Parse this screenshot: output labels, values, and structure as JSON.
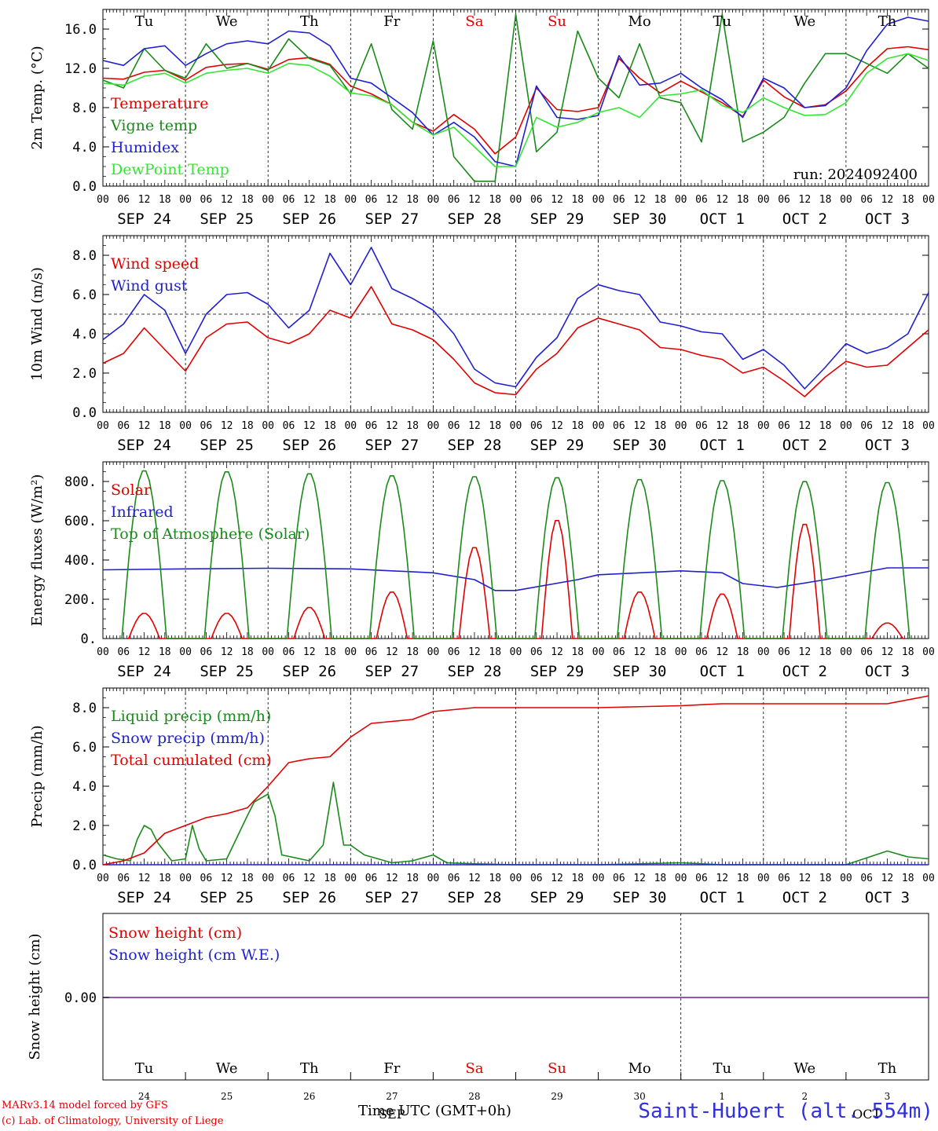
{
  "footer": {
    "credit_line1": "MARv3.14 model forced by GFS",
    "credit_line2": "(c) Lab. of Climatology, University of Liege",
    "station": "Saint-Hubert (alt. 554m)",
    "time_axis_title": "Time UTC (GMT+0h)"
  },
  "colors": {
    "red": "#e00000",
    "green": "#1a8a1a",
    "blue": "#2020d0",
    "light_green": "#33e633",
    "purple": "#8040a0",
    "grid": "#000000"
  },
  "day_names": [
    "Tu",
    "We",
    "Th",
    "Fr",
    "Sa",
    "Su",
    "Mo",
    "Tu",
    "We",
    "Th"
  ],
  "weekend_days": [
    4,
    5
  ],
  "date_labels": [
    "SEP 24",
    "SEP 25",
    "SEP 26",
    "SEP 27",
    "SEP 28",
    "SEP 29",
    "SEP 30",
    "OCT  1",
    "OCT  2",
    "OCT  3"
  ],
  "hour_labels": [
    "00",
    "06",
    "12",
    "18"
  ],
  "bottom_day_numbers": [
    "24",
    "25",
    "26",
    "27",
    "28",
    "29",
    "30",
    "1",
    "2",
    "3"
  ],
  "bottom_month_labels": [
    "SEP",
    "OCT"
  ],
  "chart_data": [
    {
      "type": "line",
      "ylabel": "2m Temp. (°C)",
      "annotation": "run: 2024092400",
      "ylim": [
        0,
        18
      ],
      "yticks": [
        "0.0",
        "4.0",
        "8.0",
        "12.0",
        "16.0"
      ],
      "x_unit": "hours since 2024-09-24 00 UTC",
      "series": [
        {
          "name": "Temperature",
          "color": "red",
          "x": [
            0,
            6,
            12,
            18,
            24,
            30,
            36,
            42,
            48,
            54,
            60,
            66,
            72,
            78,
            84,
            90,
            96,
            102,
            108,
            114,
            120,
            126,
            132,
            138,
            144,
            150,
            156,
            162,
            168,
            174,
            180,
            186,
            192,
            198,
            204,
            210,
            216,
            222,
            228,
            234,
            240
          ],
          "values": [
            11.0,
            10.9,
            11.6,
            11.8,
            10.8,
            12.1,
            12.4,
            12.5,
            11.9,
            12.9,
            13.1,
            12.4,
            10.2,
            9.4,
            8.3,
            6.5,
            5.6,
            7.3,
            5.8,
            3.3,
            5.0,
            10.0,
            7.8,
            7.6,
            8.0,
            13.0,
            11.0,
            9.5,
            10.7,
            9.6,
            8.5,
            7.1,
            10.8,
            9.1,
            8.0,
            8.3,
            9.7,
            12.1,
            14.0,
            14.2,
            13.9
          ]
        },
        {
          "name": "Vigne temp",
          "color": "green",
          "x": [
            0,
            6,
            12,
            18,
            24,
            30,
            36,
            42,
            48,
            54,
            60,
            66,
            72,
            78,
            84,
            90,
            96,
            102,
            108,
            114,
            120,
            126,
            132,
            138,
            144,
            150,
            156,
            162,
            168,
            174,
            180,
            186,
            192,
            198,
            204,
            210,
            216,
            222,
            228,
            234,
            240
          ],
          "values": [
            10.8,
            10.0,
            14.0,
            11.8,
            11.0,
            14.5,
            12.0,
            12.5,
            11.8,
            15.0,
            13.0,
            12.3,
            9.4,
            14.5,
            7.8,
            5.8,
            14.8,
            3.0,
            0.5,
            0.5,
            17.5,
            3.5,
            5.5,
            15.8,
            11.0,
            9.0,
            14.5,
            9.0,
            8.5,
            4.5,
            17.5,
            4.5,
            5.5,
            7.0,
            10.5,
            13.5,
            13.5,
            12.5,
            11.5,
            13.5,
            12.0
          ]
        },
        {
          "name": "Humidex",
          "color": "blue",
          "x": [
            0,
            6,
            12,
            18,
            24,
            30,
            36,
            42,
            48,
            54,
            60,
            66,
            72,
            78,
            84,
            90,
            96,
            102,
            108,
            114,
            120,
            126,
            132,
            138,
            144,
            150,
            156,
            162,
            168,
            174,
            180,
            186,
            192,
            198,
            204,
            210,
            216,
            222,
            228,
            234,
            240
          ],
          "values": [
            12.8,
            12.3,
            14.0,
            14.3,
            12.3,
            13.5,
            14.5,
            14.8,
            14.5,
            15.8,
            15.6,
            14.3,
            11.0,
            10.5,
            9.0,
            7.5,
            5.2,
            6.5,
            5.0,
            2.5,
            2.0,
            10.2,
            7.0,
            6.8,
            7.2,
            13.3,
            10.3,
            10.5,
            11.5,
            10.0,
            8.8,
            7.0,
            11.0,
            10.0,
            8.0,
            8.2,
            10.0,
            13.8,
            16.5,
            17.2,
            16.8
          ]
        },
        {
          "name": "DewPoint Temp",
          "color": "light_green",
          "x": [
            0,
            6,
            12,
            18,
            24,
            30,
            36,
            42,
            48,
            54,
            60,
            66,
            72,
            78,
            84,
            90,
            96,
            102,
            108,
            114,
            120,
            126,
            132,
            138,
            144,
            150,
            156,
            162,
            168,
            174,
            180,
            186,
            192,
            198,
            204,
            210,
            216,
            222,
            228,
            234,
            240
          ],
          "values": [
            10.5,
            10.3,
            11.2,
            11.5,
            10.5,
            11.5,
            11.8,
            12.0,
            11.5,
            12.5,
            12.3,
            11.2,
            9.5,
            9.2,
            8.3,
            6.5,
            5.2,
            6.0,
            4.0,
            2.0,
            2.0,
            7.0,
            6.0,
            6.5,
            7.5,
            8.0,
            7.0,
            9.2,
            9.4,
            9.8,
            8.2,
            7.5,
            9.0,
            8.0,
            7.2,
            7.3,
            8.5,
            11.5,
            13.0,
            13.5,
            12.8
          ]
        }
      ]
    },
    {
      "type": "line",
      "ylabel": "10m Wind (m/s)",
      "ylim": [
        0,
        9
      ],
      "yticks": [
        "0.0",
        "2.0",
        "4.0",
        "6.0",
        "8.0"
      ],
      "reference_line": 5.0,
      "series": [
        {
          "name": "Wind speed",
          "color": "red",
          "x": [
            0,
            6,
            12,
            18,
            24,
            30,
            36,
            42,
            48,
            54,
            60,
            66,
            72,
            78,
            84,
            90,
            96,
            102,
            108,
            114,
            120,
            126,
            132,
            138,
            144,
            150,
            156,
            162,
            168,
            174,
            180,
            186,
            192,
            198,
            204,
            210,
            216,
            222,
            228,
            234,
            240
          ],
          "values": [
            2.5,
            3.0,
            4.3,
            3.2,
            2.1,
            3.8,
            4.5,
            4.6,
            3.8,
            3.5,
            4.0,
            5.2,
            4.8,
            6.4,
            4.5,
            4.2,
            3.7,
            2.7,
            1.5,
            1.0,
            0.9,
            2.2,
            3.0,
            4.3,
            4.8,
            4.5,
            4.2,
            3.3,
            3.2,
            2.9,
            2.7,
            2.0,
            2.3,
            1.6,
            0.8,
            1.8,
            2.6,
            2.3,
            2.4,
            3.3,
            4.2
          ]
        },
        {
          "name": "Wind gust",
          "color": "blue",
          "x": [
            0,
            6,
            12,
            18,
            24,
            30,
            36,
            42,
            48,
            54,
            60,
            66,
            72,
            78,
            84,
            90,
            96,
            102,
            108,
            114,
            120,
            126,
            132,
            138,
            144,
            150,
            156,
            162,
            168,
            174,
            180,
            186,
            192,
            198,
            204,
            210,
            216,
            222,
            228,
            234,
            240
          ],
          "values": [
            3.7,
            4.5,
            6.0,
            5.2,
            3.0,
            5.0,
            6.0,
            6.1,
            5.5,
            4.3,
            5.2,
            8.1,
            6.5,
            8.4,
            6.3,
            5.8,
            5.2,
            4.0,
            2.2,
            1.5,
            1.3,
            2.8,
            3.8,
            5.8,
            6.5,
            6.2,
            6.0,
            4.6,
            4.4,
            4.1,
            4.0,
            2.7,
            3.2,
            2.4,
            1.2,
            2.3,
            3.5,
            3.0,
            3.3,
            4.0,
            6.1
          ]
        }
      ]
    },
    {
      "type": "line",
      "ylabel": "Energy fluxes (W/m²)",
      "ylim": [
        0,
        900
      ],
      "yticks": [
        "0.",
        "200.",
        "400.",
        "600.",
        "800."
      ],
      "series": [
        {
          "name": "Solar",
          "color": "red",
          "daily_peaks": [
            130,
            130,
            160,
            240,
            470,
            610,
            240,
            230,
            590,
            80
          ]
        },
        {
          "name": "Infrared",
          "color": "blue",
          "x": [
            0,
            24,
            48,
            72,
            96,
            108,
            114,
            120,
            138,
            144,
            168,
            180,
            186,
            196,
            210,
            228,
            240
          ],
          "values": [
            350,
            355,
            358,
            355,
            335,
            300,
            245,
            245,
            300,
            325,
            345,
            335,
            280,
            260,
            300,
            360,
            360
          ]
        },
        {
          "name": "Top of Atmosphere (Solar)",
          "color": "green",
          "daily_peaks": [
            860,
            855,
            845,
            835,
            830,
            825,
            815,
            810,
            805,
            800
          ]
        }
      ]
    },
    {
      "type": "line",
      "ylabel": "Precip (mm/h)",
      "ylim": [
        0,
        9
      ],
      "yticks": [
        "0.0",
        "2.0",
        "4.0",
        "6.0",
        "8.0"
      ],
      "series": [
        {
          "name": "Liquid precip (mm/h)",
          "color": "green",
          "x": [
            0,
            4,
            8,
            10,
            12,
            14,
            16,
            20,
            24,
            26,
            28,
            30,
            36,
            42,
            44,
            48,
            50,
            52,
            60,
            64,
            67,
            70,
            72,
            76,
            84,
            90,
            96,
            100,
            108,
            120,
            144,
            168,
            180,
            216,
            228,
            234,
            240
          ],
          "values": [
            0.5,
            0.3,
            0.2,
            1.3,
            2.0,
            1.8,
            1.1,
            0.2,
            0.3,
            2.0,
            0.8,
            0.2,
            0.3,
            2.5,
            3.2,
            3.6,
            2.5,
            0.5,
            0.2,
            1.0,
            4.2,
            1.0,
            1.0,
            0.5,
            0.1,
            0.2,
            0.5,
            0.1,
            0.05,
            0.0,
            0.0,
            0.1,
            0.0,
            0.0,
            0.7,
            0.4,
            0.3
          ]
        },
        {
          "name": "Snow precip (mm/h)",
          "color": "blue",
          "x": [
            0,
            240
          ],
          "values": [
            0,
            0
          ]
        },
        {
          "name": "Total cumulated (cm)",
          "color": "red",
          "x": [
            0,
            6,
            12,
            18,
            24,
            30,
            36,
            42,
            48,
            54,
            60,
            66,
            72,
            78,
            84,
            90,
            96,
            108,
            120,
            144,
            168,
            180,
            216,
            228,
            234,
            240
          ],
          "values": [
            0.0,
            0.2,
            0.6,
            1.6,
            2.0,
            2.4,
            2.6,
            2.9,
            4.0,
            5.2,
            5.4,
            5.5,
            6.5,
            7.2,
            7.3,
            7.4,
            7.8,
            8.0,
            8.0,
            8.0,
            8.1,
            8.2,
            8.2,
            8.2,
            8.4,
            8.6
          ]
        }
      ]
    },
    {
      "type": "line",
      "ylabel": "Snow height (cm)",
      "yticks": [
        "0.00"
      ],
      "series": [
        {
          "name": "Snow height (cm)",
          "color": "red",
          "x": [
            0,
            240
          ],
          "values": [
            0,
            0
          ]
        },
        {
          "name": "Snow height (cm W.E.)",
          "color": "blue",
          "x": [
            0,
            240
          ],
          "values": [
            0,
            0
          ]
        }
      ]
    }
  ]
}
